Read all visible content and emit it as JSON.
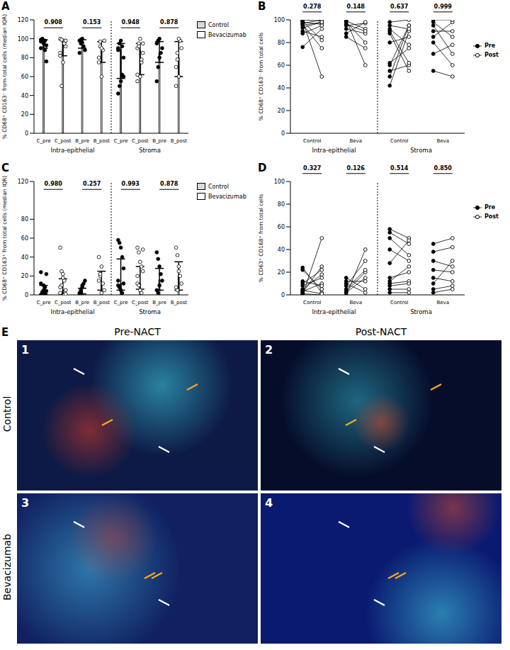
{
  "chart_data": [
    {
      "panel": "A",
      "type": "bar",
      "ylabel": "% CD68⁺ CD163⁻ from total cells (median IQR)",
      "categories": [
        "C_pre",
        "C_post",
        "B_pre",
        "B_post",
        "C_pre",
        "C_post",
        "B_pre",
        "B_post"
      ],
      "category_groups": [
        "Intra-epithelial",
        "Intra-epithelial",
        "Intra-epithelial",
        "Intra-epithelial",
        "Stroma",
        "Stroma",
        "Stroma",
        "Stroma"
      ],
      "values": [
        96,
        97,
        97,
        88,
        89,
        88,
        85,
        80
      ],
      "iqr_low": [
        90,
        82,
        90,
        75,
        58,
        62,
        75,
        60
      ],
      "iqr_high": [
        99,
        99,
        99,
        97,
        95,
        95,
        97,
        97
      ],
      "colors": [
        "#d9d9d9",
        "#d9d9d9",
        "#ffffff",
        "#ffffff",
        "#d9d9d9",
        "#d9d9d9",
        "#ffffff",
        "#ffffff"
      ],
      "points": [
        {
          "marker": "filled",
          "values": [
            97,
            99,
            95,
            98,
            76,
            90,
            100,
            96,
            88,
            93,
            99
          ]
        },
        {
          "marker": "open",
          "values": [
            100,
            50,
            98,
            96,
            92,
            85,
            99,
            75,
            95,
            98,
            82
          ]
        },
        {
          "marker": "filled",
          "values": [
            98,
            95,
            100,
            92,
            88,
            85,
            99,
            96
          ]
        },
        {
          "marker": "open",
          "values": [
            80,
            97,
            60,
            88,
            98,
            75,
            92,
            90
          ]
        },
        {
          "marker": "filled",
          "values": [
            42,
            50,
            55,
            62,
            80,
            90,
            95,
            98,
            92,
            60,
            88
          ]
        },
        {
          "marker": "open",
          "values": [
            90,
            95,
            60,
            75,
            85,
            62,
            92,
            100,
            78,
            95,
            55
          ]
        },
        {
          "marker": "filled",
          "values": [
            55,
            70,
            80,
            85,
            90,
            95,
            98,
            100
          ]
        },
        {
          "marker": "open",
          "values": [
            50,
            78,
            60,
            98,
            90,
            70,
            85,
            100
          ]
        }
      ],
      "p_values": [
        "0.908",
        "0.153",
        "0.948",
        "0.878"
      ],
      "ylim": [
        0,
        120
      ],
      "yticks": [
        0,
        20,
        40,
        60,
        80,
        100,
        120
      ],
      "series": [
        {
          "name": "Control",
          "color": "#d9d9d9"
        },
        {
          "name": "Bevacizumab",
          "color": "#ffffff"
        }
      ],
      "legend": "right"
    },
    {
      "panel": "B",
      "type": "paired",
      "ylabel": "% CD68⁺ CD163⁻ from total cells",
      "categories": [
        "Control",
        "Beva",
        "Control",
        "Beva"
      ],
      "category_groups": [
        "Intra-epithelial",
        "Intra-epithelial",
        "Stroma",
        "Stroma"
      ],
      "p_values": [
        "0.278",
        "0.148",
        "0.637",
        "0.999"
      ],
      "ylim": [
        0,
        100
      ],
      "yticks": [
        0,
        20,
        40,
        60,
        80,
        100
      ],
      "series": [
        {
          "name": "Pre",
          "marker": "filled",
          "color": "#000000",
          "values": [
            [
              97,
              99,
              95,
              98,
              76,
              90,
              100,
              96,
              88,
              93,
              99
            ],
            [
              98,
              95,
              100,
              92,
              88,
              85,
              99,
              96
            ],
            [
              42,
              50,
              55,
              62,
              80,
              90,
              95,
              98,
              92,
              60,
              88
            ],
            [
              55,
              70,
              80,
              85,
              90,
              95,
              98,
              100
            ]
          ]
        },
        {
          "name": "Post",
          "marker": "open",
          "color": "#000000",
          "values": [
            [
              100,
              50,
              98,
              96,
              92,
              85,
              99,
              75,
              95,
              98,
              82
            ],
            [
              80,
              97,
              60,
              88,
              98,
              75,
              92,
              90
            ],
            [
              90,
              95,
              60,
              75,
              85,
              62,
              92,
              100,
              78,
              95,
              55
            ],
            [
              50,
              78,
              60,
              98,
              90,
              70,
              85,
              100
            ]
          ]
        }
      ],
      "legend": "right"
    },
    {
      "panel": "C",
      "type": "bar",
      "ylabel": "% CD68⁺ CD163⁺ from total cells (median IQR)",
      "categories": [
        "C_pre",
        "C_post",
        "B_pre",
        "B_post",
        "C_pre",
        "C_post",
        "B_pre",
        "B_post"
      ],
      "category_groups": [
        "Intra-epithelial",
        "Intra-epithelial",
        "Intra-epithelial",
        "Intra-epithelial",
        "Stroma",
        "Stroma",
        "Stroma",
        "Stroma"
      ],
      "values": [
        4,
        5,
        3,
        13,
        12,
        12,
        16,
        21
      ],
      "iqr_low": [
        1,
        1,
        1,
        5,
        5,
        6,
        5,
        5
      ],
      "iqr_high": [
        10,
        17,
        7,
        25,
        38,
        30,
        28,
        35
      ],
      "colors": [
        "#d9d9d9",
        "#d9d9d9",
        "#ffffff",
        "#ffffff",
        "#d9d9d9",
        "#d9d9d9",
        "#ffffff",
        "#ffffff"
      ],
      "points": [
        {
          "marker": "filled",
          "values": [
            0,
            2,
            5,
            8,
            22,
            24,
            3,
            10,
            1,
            4,
            12
          ]
        },
        {
          "marker": "open",
          "values": [
            50,
            25,
            18,
            15,
            5,
            2,
            10,
            22,
            0,
            1,
            8
          ]
        },
        {
          "marker": "filled",
          "values": [
            0,
            3,
            8,
            12,
            15,
            2,
            5,
            10
          ]
        },
        {
          "marker": "open",
          "values": [
            40,
            20,
            30,
            12,
            5,
            15,
            22,
            2
          ]
        },
        {
          "marker": "filled",
          "values": [
            58,
            55,
            50,
            40,
            12,
            10,
            8,
            5,
            2,
            28,
            15
          ]
        },
        {
          "marker": "open",
          "values": [
            50,
            45,
            35,
            30,
            25,
            12,
            10,
            5,
            2,
            48,
            20
          ]
        },
        {
          "marker": "filled",
          "values": [
            45,
            38,
            30,
            22,
            15,
            5,
            2,
            10
          ]
        },
        {
          "marker": "open",
          "values": [
            50,
            42,
            25,
            20,
            12,
            8,
            5,
            30
          ]
        }
      ],
      "p_values": [
        "0.980",
        "0.257",
        "0.993",
        "0.878"
      ],
      "ylim": [
        0,
        120
      ],
      "yticks": [
        0,
        20,
        40,
        60,
        80,
        120
      ],
      "series": [
        {
          "name": "Control",
          "color": "#d9d9d9"
        },
        {
          "name": "Bevacizumab",
          "color": "#ffffff"
        }
      ],
      "legend": "right"
    },
    {
      "panel": "D",
      "type": "paired",
      "ylabel": "% CD63⁺ CD168⁺ from total cells",
      "categories": [
        "Control",
        "Beva",
        "Control",
        "Beva"
      ],
      "category_groups": [
        "Intra-epithelial",
        "Intra-epithelial",
        "Stroma",
        "Stroma"
      ],
      "p_values": [
        "0.327",
        "0.126",
        "0.514",
        "0.850"
      ],
      "ylim": [
        0,
        100
      ],
      "yticks": [
        0,
        20,
        40,
        60,
        80,
        100
      ],
      "series": [
        {
          "name": "Pre",
          "marker": "filled",
          "color": "#000000",
          "values": [
            [
              0,
              2,
              5,
              8,
              22,
              24,
              3,
              10,
              1,
              4,
              12
            ],
            [
              0,
              3,
              8,
              12,
              15,
              2,
              5,
              10
            ],
            [
              58,
              55,
              50,
              40,
              12,
              10,
              8,
              5,
              2,
              28,
              15
            ],
            [
              45,
              38,
              30,
              22,
              15,
              5,
              2,
              10
            ]
          ]
        },
        {
          "name": "Post",
          "marker": "open",
          "color": "#000000",
          "values": [
            [
              50,
              25,
              18,
              15,
              5,
              2,
              10,
              22,
              0,
              1,
              8
            ],
            [
              40,
              20,
              30,
              12,
              5,
              15,
              22,
              2
            ],
            [
              50,
              45,
              35,
              30,
              25,
              12,
              10,
              5,
              2,
              48,
              20
            ],
            [
              50,
              42,
              25,
              20,
              12,
              8,
              5,
              30
            ]
          ]
        }
      ],
      "legend": "right"
    }
  ],
  "image_panel": {
    "panel": "E",
    "columns": [
      "Pre-NACT",
      "Post-NACT"
    ],
    "rows": [
      "Control",
      "Bevacizumab"
    ],
    "image_numbers": [
      "1",
      "2",
      "3",
      "4"
    ]
  }
}
